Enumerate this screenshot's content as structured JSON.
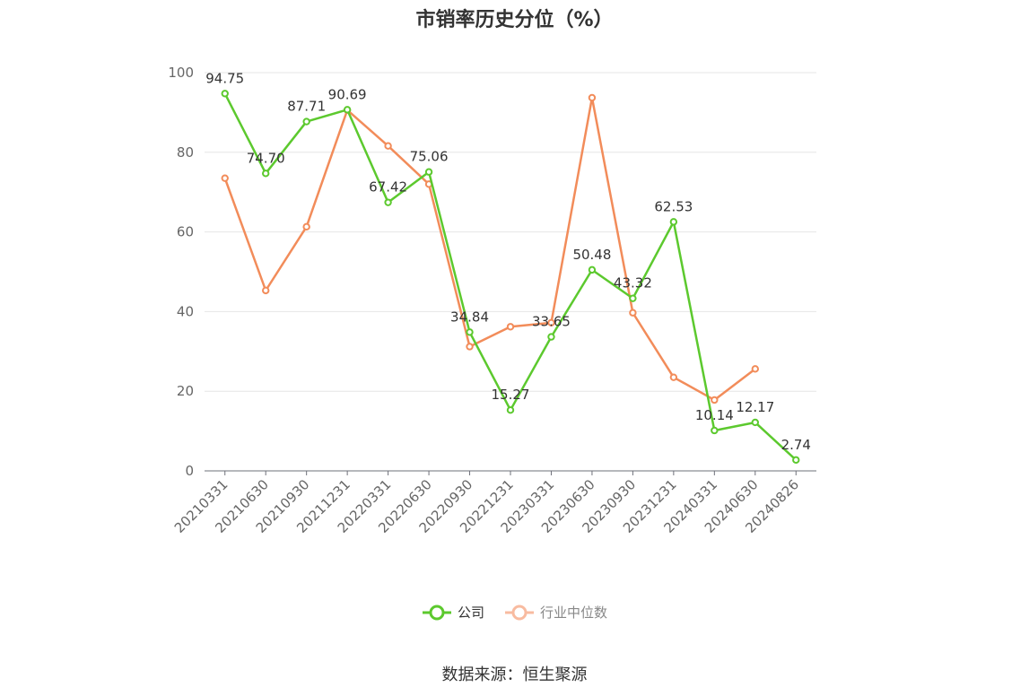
{
  "chart_data": {
    "type": "line",
    "title": "市销率历史分位（%）",
    "categories": [
      "20210331",
      "20210630",
      "20210930",
      "20211231",
      "20220331",
      "20220630",
      "20220930",
      "20221231",
      "20230331",
      "20230630",
      "20230930",
      "20231231",
      "20240331",
      "20240630",
      "20240826"
    ],
    "ylim": [
      0,
      100
    ],
    "yticks": [
      0,
      20,
      40,
      60,
      80,
      100
    ],
    "grid": true,
    "legend_position": "bottom",
    "series": [
      {
        "name": "公司",
        "color": "#5cc92e",
        "values": [
          94.75,
          74.7,
          87.71,
          90.69,
          67.42,
          75.06,
          34.84,
          15.27,
          33.65,
          50.48,
          43.32,
          62.53,
          10.14,
          12.17,
          2.74
        ],
        "labels": [
          "94.75",
          "74.70",
          "87.71",
          "90.69",
          "67.42",
          "75.06",
          "34.84",
          "15.27",
          "33.65",
          "50.48",
          "43.32",
          "62.53",
          "10.14",
          "12.17",
          "2.74"
        ]
      },
      {
        "name": "行业中位数",
        "color": "#f28c5a",
        "values": [
          73.5,
          45.3,
          61.3,
          90.6,
          81.6,
          72.0,
          31.2,
          36.2,
          37.2,
          93.7,
          39.7,
          23.5,
          17.8,
          25.6,
          null
        ]
      }
    ]
  },
  "legend": {
    "company_label": "公司",
    "industry_label": "行业中位数",
    "company_color": "#5cc92e",
    "industry_color": "#f8bba0"
  },
  "source": "数据来源：恒生聚源"
}
